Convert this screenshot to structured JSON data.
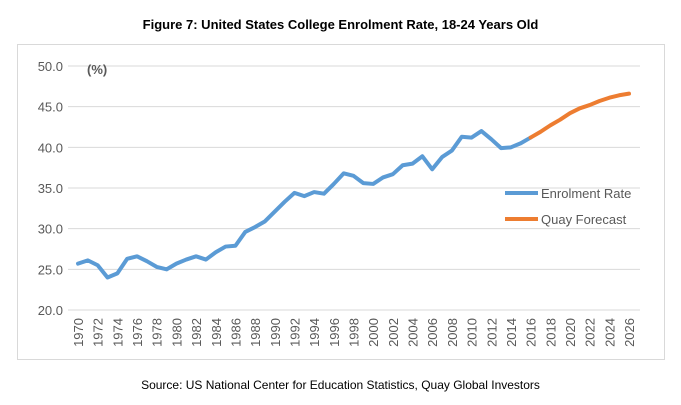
{
  "chart_data": {
    "type": "line",
    "title": "Figure 7: United States College Enrolment Rate, 18-24 Years Old",
    "ylabel": "(%)",
    "xlabel": "",
    "ylim": [
      20,
      50
    ],
    "xlim": [
      1970,
      2026
    ],
    "yticks": [
      "20.0",
      "25.0",
      "30.0",
      "35.0",
      "40.0",
      "45.0",
      "50.0"
    ],
    "xticks": [
      "1970",
      "1972",
      "1974",
      "1976",
      "1978",
      "1980",
      "1982",
      "1984",
      "1986",
      "1988",
      "1990",
      "1992",
      "1994",
      "1996",
      "1998",
      "2000",
      "2002",
      "2004",
      "2006",
      "2008",
      "2010",
      "2012",
      "2014",
      "2016",
      "2018",
      "2020",
      "2022",
      "2024",
      "2026"
    ],
    "grid": true,
    "legend_position": "right",
    "series": [
      {
        "name": "Enrolment Rate",
        "color": "#5B9BD5",
        "x": [
          1970,
          1971,
          1972,
          1973,
          1974,
          1975,
          1976,
          1977,
          1978,
          1979,
          1980,
          1981,
          1982,
          1983,
          1984,
          1985,
          1986,
          1987,
          1988,
          1989,
          1990,
          1991,
          1992,
          1993,
          1994,
          1995,
          1996,
          1997,
          1998,
          1999,
          2000,
          2001,
          2002,
          2003,
          2004,
          2005,
          2006,
          2007,
          2008,
          2009,
          2010,
          2011,
          2012,
          2013,
          2014,
          2015,
          2016
        ],
        "values": [
          25.7,
          26.1,
          25.5,
          24.0,
          24.5,
          26.3,
          26.6,
          26.0,
          25.3,
          25.0,
          25.7,
          26.2,
          26.6,
          26.2,
          27.1,
          27.8,
          27.9,
          29.6,
          30.2,
          30.9,
          32.1,
          33.3,
          34.4,
          34.0,
          34.5,
          34.3,
          35.5,
          36.8,
          36.5,
          35.6,
          35.5,
          36.3,
          36.7,
          37.8,
          38.0,
          38.9,
          37.3,
          38.8,
          39.6,
          41.3,
          41.2,
          42.0,
          41.0,
          39.9,
          40.0,
          40.5,
          41.2
        ]
      },
      {
        "name": "Quay Forecast",
        "color": "#ED7D31",
        "x": [
          2016,
          2017,
          2018,
          2019,
          2020,
          2021,
          2022,
          2023,
          2024,
          2025,
          2026
        ],
        "values": [
          41.2,
          41.9,
          42.7,
          43.4,
          44.2,
          44.8,
          45.2,
          45.7,
          46.1,
          46.4,
          46.6
        ]
      }
    ],
    "source": "Source: US National Center for Education Statistics, Quay Global Investors"
  }
}
